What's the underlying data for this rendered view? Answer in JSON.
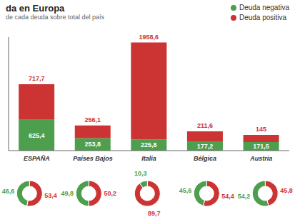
{
  "chart_data": [
    {
      "type": "bar",
      "title": "da en Europa",
      "subtitle": "de cada deuda sobre total del país",
      "categories": [
        "ESPAÑA",
        "Países Bajos",
        "Italia",
        "Bélgica",
        "Austria"
      ],
      "stacked": true,
      "data_labels": true,
      "tick_labels": "x",
      "grid": false,
      "legend": "top right",
      "ylim": [
        0,
        2293.62
      ],
      "series": [
        {
          "name": "Deuda negativa",
          "color": "#4d9e4d",
          "values": [
            625.4,
            253.8,
            225.8,
            177.2,
            171.5
          ],
          "value_labels": [
            "625,4",
            "253,8",
            "225,8",
            "177,2",
            "171,5"
          ]
        },
        {
          "name": "Deuda positiva",
          "color": "#cc3333",
          "values": [
            717.7,
            256.1,
            1958.6,
            211.6,
            145.0
          ],
          "value_labels": [
            "717,7",
            "256,1",
            "1958,6",
            "211,6",
            "145"
          ]
        }
      ]
    },
    {
      "type": "pie",
      "values": [
        53.4,
        46.6
      ],
      "value_labels": [
        "53,4",
        "46,6"
      ],
      "colors": [
        "#cc3333",
        "#4d9e4d"
      ],
      "data_labels": true
    },
    {
      "type": "pie",
      "values": [
        50.2,
        49.8
      ],
      "value_labels": [
        "50,2",
        "49,8"
      ],
      "colors": [
        "#cc3333",
        "#4d9e4d"
      ],
      "data_labels": true
    },
    {
      "type": "pie",
      "values": [
        89.7,
        10.3
      ],
      "value_labels": [
        "89,7",
        "10,3"
      ],
      "colors": [
        "#cc3333",
        "#4d9e4d"
      ],
      "data_labels": true
    },
    {
      "type": "pie",
      "values": [
        54.4,
        45.6
      ],
      "value_labels": [
        "54,4",
        "45,6"
      ],
      "colors": [
        "#cc3333",
        "#4d9e4d"
      ],
      "data_labels": true
    },
    {
      "type": "pie",
      "values": [
        45.8,
        54.2
      ],
      "value_labels": [
        "45,8",
        "54,2"
      ],
      "colors": [
        "#cc3333",
        "#4d9e4d"
      ],
      "data_labels": true
    }
  ]
}
